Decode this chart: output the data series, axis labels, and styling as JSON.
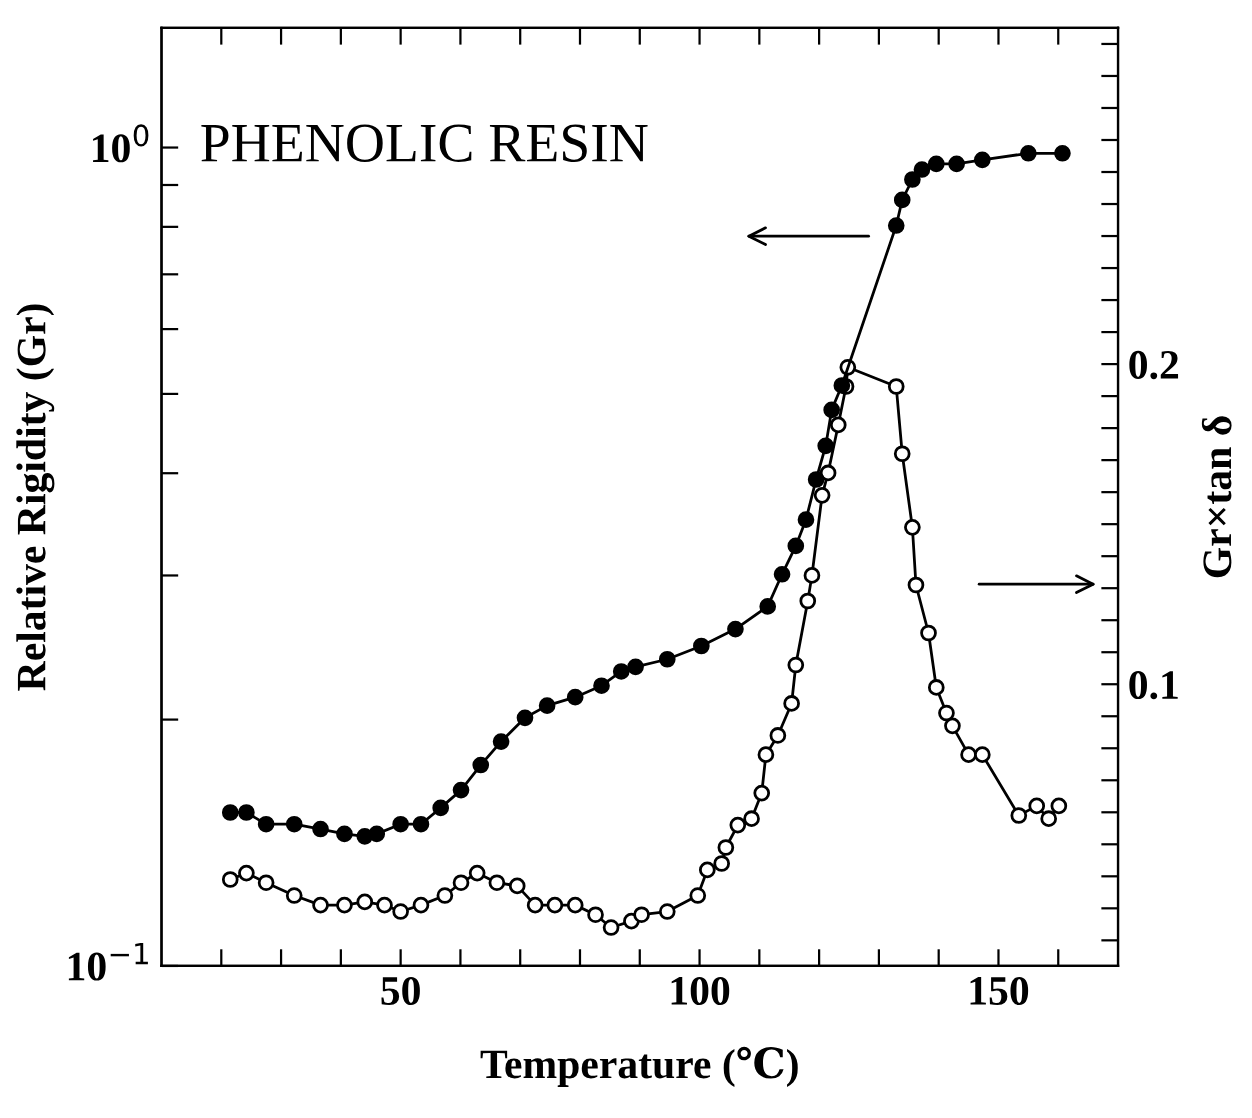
{
  "chart_data": {
    "type": "line",
    "xlabel": "Temperature (℃)",
    "ylabel": "Relative Rigidity (Gr)",
    "y2label": "Gr×tan δ",
    "annotations": [
      "PHENOLIC RESIN"
    ],
    "log": "y",
    "grid": false,
    "line_style": "solid",
    "marker": "circle",
    "xlim": [
      10,
      170
    ],
    "xticks": [
      {
        "value": 20,
        "label": null
      },
      {
        "value": 30,
        "label": null
      },
      {
        "value": 40,
        "label": null
      },
      50,
      {
        "value": 60,
        "label": null
      },
      {
        "value": 70,
        "label": null
      },
      {
        "value": 80,
        "label": null
      },
      {
        "value": 90,
        "label": null
      },
      100,
      {
        "value": 110,
        "label": null
      },
      {
        "value": 120,
        "label": null
      },
      {
        "value": 130,
        "label": null
      },
      {
        "value": 140,
        "label": null
      },
      150,
      {
        "value": 160,
        "label": null
      }
    ],
    "ylim": [
      0.1,
      1.4
    ],
    "yticks": [
      {
        "value": 0.1,
        "label": "10$^{−1}$"
      },
      {
        "value": 0.2,
        "label": null
      },
      {
        "value": 0.3,
        "label": null
      },
      {
        "value": 0.4,
        "label": null
      },
      {
        "value": 0.5,
        "label": null
      },
      {
        "value": 0.6,
        "label": null
      },
      {
        "value": 0.7,
        "label": null
      },
      {
        "value": 0.8,
        "label": null
      },
      {
        "value": 0.9,
        "label": null
      },
      {
        "value": 1,
        "label": "10$^{0}$"
      }
    ],
    "y2lim": [
      0.012,
      0.305
    ],
    "y2ticks": [
      {
        "value": 0.02,
        "label": null
      },
      {
        "value": 0.03,
        "label": null
      },
      {
        "value": 0.04,
        "label": null
      },
      {
        "value": 0.05,
        "label": null
      },
      {
        "value": 0.06,
        "label": null
      },
      {
        "value": 0.07,
        "label": null
      },
      {
        "value": 0.08,
        "label": null
      },
      {
        "value": 0.09,
        "label": null
      },
      0.1,
      {
        "value": 0.11,
        "label": null
      },
      {
        "value": 0.12,
        "label": null
      },
      {
        "value": 0.13,
        "label": null
      },
      {
        "value": 0.14,
        "label": null
      },
      {
        "value": 0.15,
        "label": null
      },
      {
        "value": 0.16,
        "label": null
      },
      {
        "value": 0.17,
        "label": null
      },
      {
        "value": 0.18,
        "label": null
      },
      {
        "value": 0.19,
        "label": null
      },
      0.2,
      {
        "value": 0.21,
        "label": null
      },
      {
        "value": 0.22,
        "label": null
      },
      {
        "value": 0.23,
        "label": null
      },
      {
        "value": 0.24,
        "label": null
      },
      {
        "value": 0.25,
        "label": null
      },
      {
        "value": 0.26,
        "label": null
      },
      {
        "value": 0.27,
        "label": null
      },
      {
        "value": 0.28,
        "label": null
      },
      {
        "value": 0.29,
        "label": null
      },
      {
        "value": 0.3,
        "label": null
      }
    ],
    "series": [
      {
        "color": "#000000",
        "x": [
          21.5,
          24.2,
          27.5,
          32.2,
          36.6,
          40.6,
          44.0,
          46.0,
          50.0,
          53.4,
          56.7,
          60.1,
          63.4,
          66.8,
          70.8,
          74.5,
          79.2,
          83.6,
          86.9,
          89.3,
          94.6,
          100.3,
          106.0,
          111.4,
          113.8,
          116.1,
          117.8,
          119.5,
          121.1,
          122.1,
          123.8,
          132.9,
          133.9,
          135.6,
          137.2,
          139.6,
          143.0,
          147.3,
          155.0,
          160.7
        ],
        "values": [
          0.154,
          0.154,
          0.149,
          0.149,
          0.147,
          0.145,
          0.144,
          0.145,
          0.149,
          0.149,
          0.156,
          0.164,
          0.176,
          0.188,
          0.201,
          0.208,
          0.213,
          0.22,
          0.229,
          0.232,
          0.237,
          0.246,
          0.258,
          0.275,
          0.301,
          0.326,
          0.351,
          0.393,
          0.432,
          0.478,
          0.512,
          0.803,
          0.863,
          0.914,
          0.94,
          0.955,
          0.955,
          0.966,
          0.984,
          0.984
        ]
      },
      {
        "color": "#000000",
        "axis": "y2",
        "x": [
          21.5,
          24.2,
          27.5,
          32.2,
          36.6,
          40.6,
          44.0,
          47.3,
          50.0,
          53.4,
          57.4,
          60.1,
          62.8,
          66.1,
          69.5,
          72.5,
          75.8,
          79.2,
          82.6,
          85.2,
          88.6,
          90.3,
          94.6,
          99.7,
          101.3,
          103.7,
          104.4,
          106.4,
          108.7,
          110.4,
          111.1,
          113.1,
          115.4,
          116.1,
          118.1,
          118.8,
          120.5,
          121.5,
          123.2,
          124.5,
          124.8,
          132.9,
          133.9,
          135.6,
          136.2,
          138.3,
          139.6,
          141.3,
          142.3,
          145.0,
          147.3,
          153.4,
          156.4,
          158.4,
          160.1
        ],
        "values": [
          0.039,
          0.041,
          0.038,
          0.034,
          0.031,
          0.031,
          0.032,
          0.031,
          0.029,
          0.031,
          0.034,
          0.038,
          0.041,
          0.038,
          0.037,
          0.031,
          0.031,
          0.031,
          0.028,
          0.024,
          0.026,
          0.028,
          0.029,
          0.034,
          0.042,
          0.044,
          0.049,
          0.056,
          0.058,
          0.066,
          0.078,
          0.084,
          0.094,
          0.106,
          0.126,
          0.134,
          0.159,
          0.166,
          0.181,
          0.193,
          0.199,
          0.193,
          0.172,
          0.149,
          0.131,
          0.116,
          0.099,
          0.091,
          0.087,
          0.078,
          0.078,
          0.059,
          0.062,
          0.058,
          0.062
        ]
      }
    ]
  }
}
